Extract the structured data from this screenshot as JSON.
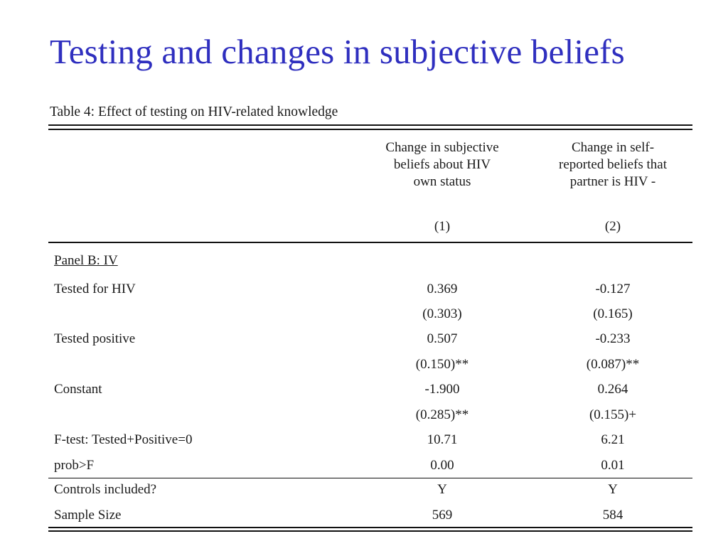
{
  "title": "Testing and changes in subjective beliefs",
  "table": {
    "caption": "Table 4: Effect of testing on HIV-related knowledge",
    "columns": [
      {
        "header_lines": [
          "Change in subjective",
          "beliefs about HIV",
          "own status"
        ],
        "number": "(1)"
      },
      {
        "header_lines": [
          "Change in self-",
          "reported beliefs that",
          "partner is HIV -"
        ],
        "number": "(2)"
      }
    ],
    "panel_label": "Panel B: IV",
    "rows": [
      {
        "label": "Tested for HIV",
        "values": [
          "0.369",
          "-0.127"
        ]
      },
      {
        "label": "",
        "values": [
          "(0.303)",
          "(0.165)"
        ]
      },
      {
        "label": "Tested positive",
        "values": [
          "0.507",
          "-0.233"
        ]
      },
      {
        "label": "",
        "values": [
          "(0.150)**",
          "(0.087)**"
        ]
      },
      {
        "label": "Constant",
        "values": [
          "-1.900",
          "0.264"
        ]
      },
      {
        "label": "",
        "values": [
          "(0.285)**",
          "(0.155)+"
        ]
      },
      {
        "label": "F-test: Tested+Positive=0",
        "values": [
          "10.71",
          "6.21"
        ]
      },
      {
        "label": "prob>F",
        "values": [
          "0.00",
          "0.01"
        ]
      }
    ],
    "bottom_rows": [
      {
        "label": "Controls included?",
        "values": [
          "Y",
          "Y"
        ]
      },
      {
        "label": "Sample Size",
        "values": [
          "569",
          "584"
        ]
      }
    ]
  }
}
